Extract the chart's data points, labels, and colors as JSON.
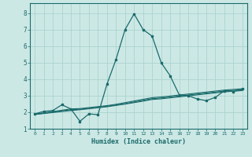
{
  "background_color": "#cce8e5",
  "grid_color": "#aad4d0",
  "line_color": "#1a6b6b",
  "xlabel": "Humidex (Indice chaleur)",
  "xlim": [
    -0.5,
    23.5
  ],
  "ylim": [
    1.0,
    8.6
  ],
  "xticks": [
    0,
    1,
    2,
    3,
    4,
    5,
    6,
    7,
    8,
    9,
    10,
    11,
    12,
    13,
    14,
    15,
    16,
    17,
    18,
    19,
    20,
    21,
    22,
    23
  ],
  "yticks": [
    1,
    2,
    3,
    4,
    5,
    6,
    7,
    8
  ],
  "series": [
    {
      "x": [
        0,
        1,
        2,
        3,
        4,
        5,
        6,
        7,
        8,
        9,
        10,
        11,
        12,
        13,
        14,
        15,
        16,
        17,
        18,
        19,
        20,
        21,
        22,
        23
      ],
      "y": [
        1.9,
        2.05,
        2.1,
        2.45,
        2.2,
        1.45,
        1.9,
        1.85,
        3.7,
        5.2,
        7.0,
        7.95,
        7.0,
        6.6,
        5.0,
        4.2,
        3.05,
        3.0,
        2.8,
        2.7,
        2.9,
        3.3,
        3.25,
        3.4
      ],
      "has_markers": true
    },
    {
      "x": [
        0,
        1,
        2,
        3,
        4,
        5,
        6,
        7,
        8,
        9,
        10,
        11,
        12,
        13,
        14,
        15,
        16,
        17,
        18,
        19,
        20,
        21,
        22,
        23
      ],
      "y": [
        1.88,
        1.96,
        2.04,
        2.12,
        2.2,
        2.22,
        2.28,
        2.34,
        2.4,
        2.48,
        2.58,
        2.68,
        2.78,
        2.88,
        2.92,
        2.98,
        3.04,
        3.1,
        3.16,
        3.22,
        3.28,
        3.34,
        3.38,
        3.42
      ],
      "has_markers": false
    },
    {
      "x": [
        0,
        1,
        2,
        3,
        4,
        5,
        6,
        7,
        8,
        9,
        10,
        11,
        12,
        13,
        14,
        15,
        16,
        17,
        18,
        19,
        20,
        21,
        22,
        23
      ],
      "y": [
        1.87,
        1.94,
        2.01,
        2.08,
        2.15,
        2.18,
        2.24,
        2.3,
        2.36,
        2.44,
        2.52,
        2.62,
        2.72,
        2.82,
        2.86,
        2.92,
        2.98,
        3.04,
        3.1,
        3.16,
        3.22,
        3.28,
        3.32,
        3.36
      ],
      "has_markers": false
    },
    {
      "x": [
        0,
        1,
        2,
        3,
        4,
        5,
        6,
        7,
        8,
        9,
        10,
        11,
        12,
        13,
        14,
        15,
        16,
        17,
        18,
        19,
        20,
        21,
        22,
        23
      ],
      "y": [
        1.86,
        1.92,
        1.98,
        2.04,
        2.1,
        2.15,
        2.21,
        2.27,
        2.33,
        2.41,
        2.49,
        2.58,
        2.67,
        2.77,
        2.81,
        2.87,
        2.93,
        2.99,
        3.05,
        3.11,
        3.17,
        3.23,
        3.27,
        3.31
      ],
      "has_markers": false
    }
  ]
}
